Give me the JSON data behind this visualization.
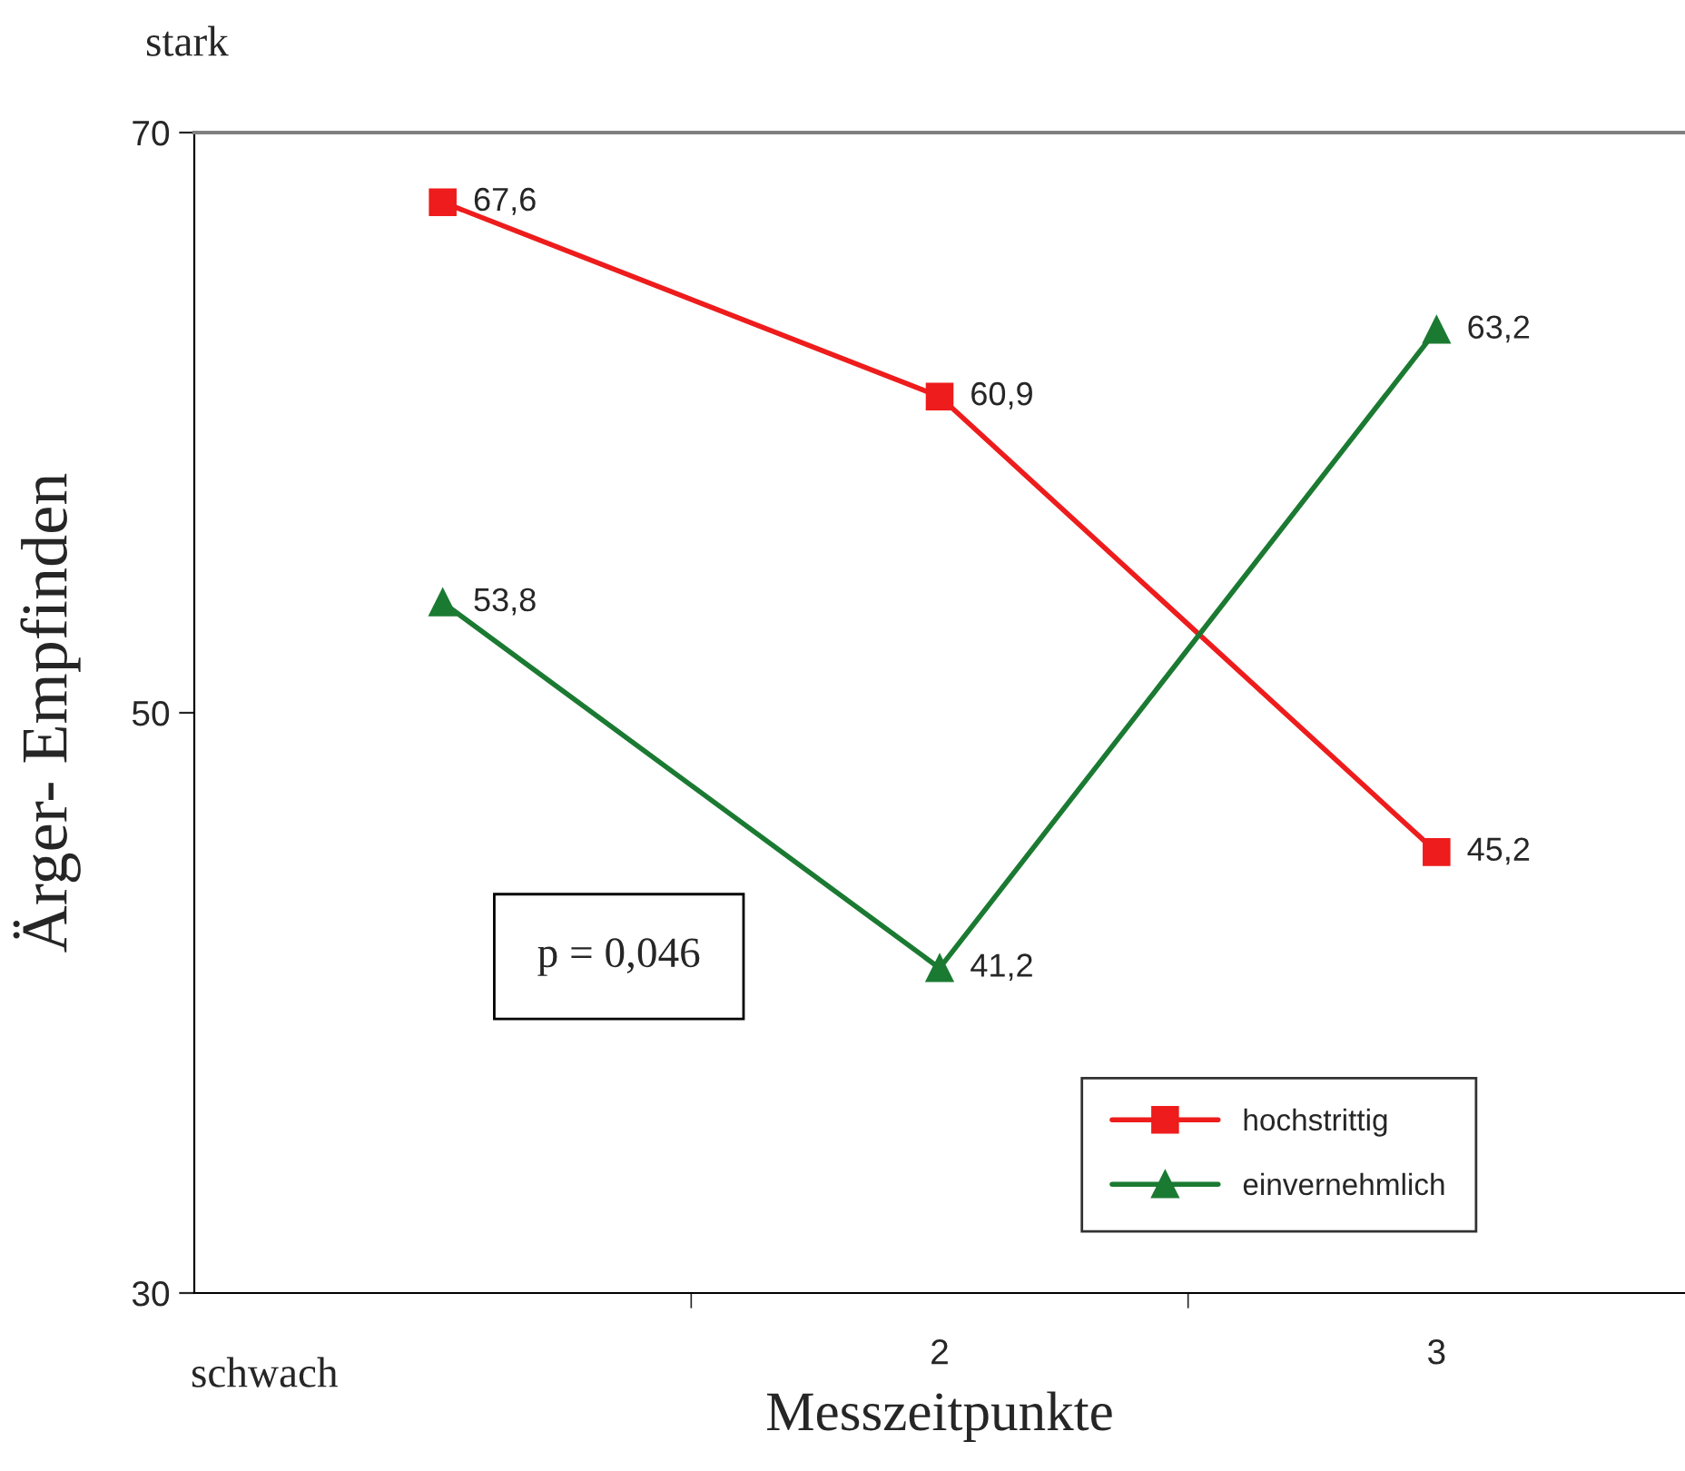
{
  "chart_data": {
    "type": "line",
    "xlabel": "Messzeitpunkte",
    "ylabel": "Ärger- Empfinden",
    "categories": [
      null,
      "2",
      "3"
    ],
    "series": [
      {
        "name": "hochstrittig",
        "color": "#ee1c1c",
        "values": [
          67.6,
          60.9,
          45.2
        ],
        "value_labels": [
          "67,6",
          "60,9",
          "45,2"
        ],
        "marker": "square"
      },
      {
        "name": "einvernehmlich",
        "color": "#1b7a32",
        "values": [
          53.8,
          41.2,
          63.2
        ],
        "value_labels": [
          "53,8",
          "41,2",
          "63,2"
        ],
        "marker": "triangle"
      }
    ],
    "ylim": [
      30,
      70
    ],
    "yticks": [
      30,
      50,
      70
    ],
    "grid": false,
    "legend": "bottom right",
    "line_style": "solid",
    "annotations": [
      "stark",
      "schwach",
      "p = 0,046"
    ]
  }
}
